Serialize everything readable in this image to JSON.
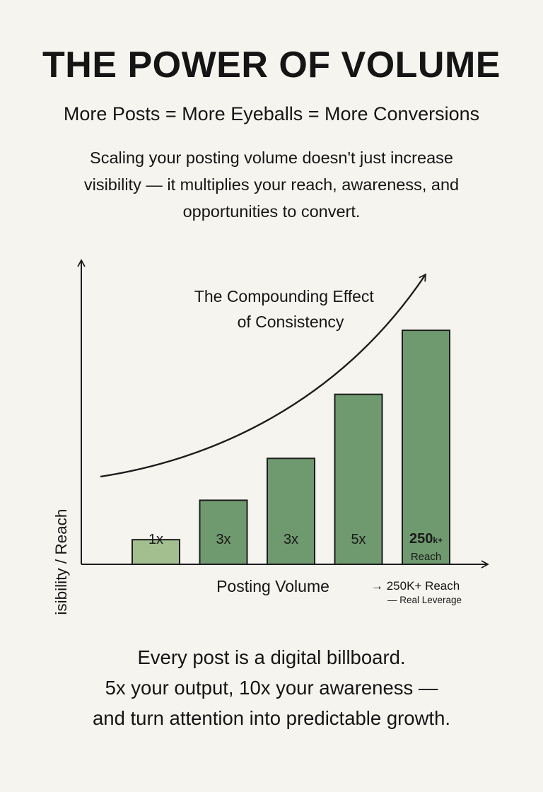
{
  "header": {
    "title": "THE POWER OF VOLUME",
    "subtitle": "More Posts = More Eyeballs = More Conversions"
  },
  "intro": {
    "lines": [
      "Scaling your posting volume doesn't just increase",
      "visibility — it multiplies your reach, awareness, and",
      "opportunities to convert."
    ]
  },
  "chart_data": {
    "type": "bar",
    "categories": [
      "1x",
      "3x",
      "3x",
      "5x",
      "250k+"
    ],
    "values": [
      1,
      2.6,
      4.3,
      6.9,
      9.5
    ],
    "bar_labels": [
      "1x",
      "3x",
      "3x",
      "5x",
      "250k+"
    ],
    "bar_sublabels": [
      "",
      "",
      "",
      "",
      "Reach"
    ],
    "ylim": [
      0,
      12
    ],
    "xlabel": "Posting Volume",
    "ylabel": "Total Visibility / Reach",
    "curve_label_lines": [
      "The Compounding Effect",
      "of Consistency"
    ],
    "x_annotation_lines": [
      "→ 250K+ Reach",
      "— Real Leverage"
    ],
    "grid": false,
    "colors": {
      "bar_first": "#a3bf90",
      "bar": "#6f9a6f",
      "bar_stroke": "#1c1c1c",
      "axis": "#1c1c1c",
      "curve": "#1c1c1c"
    }
  },
  "footer": {
    "lines": [
      "Every post is a digital billboard.",
      "5x your output, 10x your awareness —",
      "and turn attention into predictable growth."
    ]
  }
}
